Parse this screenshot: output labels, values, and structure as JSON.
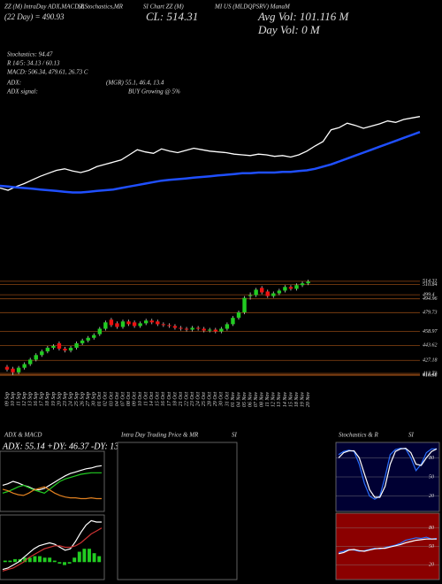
{
  "header": {
    "items": [
      "ZZ (M) IntraDay ADX,MACD,B",
      "SI,Stochastics,MR",
      "SI Chart ZZ (M)",
      "MI US (MLDQPSRV) ManaM"
    ],
    "ma_text": "(22 Day) = 490.93",
    "close_text": "CL: 514.31",
    "avg_vol": "Avg Vol: 101.116  M",
    "day_vol": "Day Vol: 0  M",
    "stats": [
      "Stochastics: 94.47",
      "R  14/5: 34.13 / 60.13",
      "MACD: 506.34, 479.61, 26.73 C"
    ],
    "adx_label": "ADX:",
    "adx_values": "(MGR) 55.1, 46.4, 13.4",
    "signal_label": "ADX  signal:",
    "signal_value": "BUY Growing @ 5%"
  },
  "chart_data": [
    {
      "type": "candlestick",
      "categories": [
        "09 Sep",
        "10 Sep",
        "11 Sep",
        "12 Sep",
        "13 Sep",
        "16 Sep",
        "17 Sep",
        "18 Sep",
        "19 Sep",
        "20 Sep",
        "23 Sep",
        "24 Sep",
        "25 Sep",
        "26 Sep",
        "27 Sep",
        "30 Sep",
        "01 Oct",
        "02 Oct",
        "03 Oct",
        "04 Oct",
        "07 Oct",
        "08 Oct",
        "09 Oct",
        "10 Oct",
        "11 Oct",
        "14 Oct",
        "15 Oct",
        "16 Oct",
        "17 Oct",
        "18 Oct",
        "21 Oct",
        "22 Oct",
        "23 Oct",
        "24 Oct",
        "25 Oct",
        "28 Oct",
        "29 Oct",
        "30 Oct",
        "31 Oct",
        "01 Nov",
        "04 Nov",
        "05 Nov",
        "06 Nov",
        "07 Nov",
        "08 Nov",
        "11 Nov",
        "12 Nov",
        "13 Nov",
        "14 Nov",
        "15 Nov",
        "18 Nov",
        "19 Nov",
        "20 Nov"
      ],
      "open": [
        420,
        418,
        414,
        419,
        423,
        428,
        433,
        437,
        441,
        446,
        440,
        438,
        441,
        446,
        449,
        452,
        456,
        462,
        472,
        468,
        464,
        470,
        469,
        465,
        468,
        471,
        470,
        467,
        466,
        465,
        463,
        462,
        461,
        463,
        462,
        460,
        461,
        459,
        462,
        467,
        474,
        480,
        498,
        499,
        507,
        503,
        498,
        501,
        504,
        508,
        506,
        510,
        512
      ],
      "high": [
        422,
        420,
        421,
        425,
        430,
        435,
        439,
        443,
        445,
        448,
        442,
        443,
        448,
        451,
        454,
        457,
        464,
        471,
        474,
        470,
        472,
        472,
        471,
        470,
        473,
        473,
        472,
        469,
        468,
        467,
        465,
        464,
        465,
        465,
        464,
        463,
        463,
        464,
        469,
        476,
        482,
        498,
        502,
        507,
        509,
        505,
        503,
        506,
        510,
        510,
        512,
        514,
        516
      ],
      "low": [
        415,
        411,
        412,
        417,
        421,
        426,
        431,
        435,
        439,
        438,
        436,
        436,
        439,
        444,
        447,
        450,
        454,
        460,
        464,
        462,
        462,
        465,
        463,
        463,
        466,
        467,
        465,
        464,
        463,
        461,
        460,
        459,
        459,
        460,
        458,
        458,
        457,
        457,
        460,
        465,
        472,
        478,
        494,
        497,
        500,
        496,
        496,
        499,
        502,
        504,
        504,
        508,
        510
      ],
      "close": [
        417,
        414,
        419,
        423,
        428,
        433,
        437,
        441,
        443,
        440,
        438,
        441,
        446,
        449,
        452,
        455,
        462,
        469,
        466,
        464,
        470,
        467,
        465,
        468,
        471,
        469,
        467,
        466,
        465,
        463,
        462,
        461,
        463,
        462,
        460,
        461,
        459,
        462,
        467,
        474,
        480,
        496,
        499,
        505,
        502,
        498,
        501,
        504,
        508,
        506,
        510,
        512,
        514
      ],
      "up_color": "#22cc22",
      "down_color": "#ee1111",
      "grid_color": "#8b4513",
      "ylim": [
        405,
        520
      ],
      "yticks": [
        514.31,
        510.84,
        499.4,
        494.96,
        479.73,
        458.97,
        443.62,
        427.18,
        412.73,
        411.41,
        410.58
      ]
    },
    {
      "type": "overlay",
      "price_color": "#ffffff",
      "ylim": [
        300,
        600
      ],
      "series": [
        {
          "color": "#1f4fff",
          "values": [
            420,
            419,
            418,
            417,
            416,
            415,
            414,
            413,
            412,
            411,
            411,
            412,
            413,
            414,
            415,
            417,
            419,
            421,
            423,
            425,
            427,
            428,
            429,
            430,
            431,
            432,
            433,
            434,
            435,
            436,
            437,
            437,
            438,
            438,
            438,
            439,
            439,
            440,
            441,
            443,
            446,
            449,
            453,
            457,
            461,
            465,
            469,
            473,
            477,
            481,
            485,
            489,
            493
          ]
        }
      ]
    },
    {
      "type": "line",
      "title": "ADX  & MACD",
      "subtitle": "ADX: 55.14  +DY: 46.37  -DY: 13.41",
      "ylim": [
        0,
        70
      ],
      "series": [
        {
          "color": "#ffffff",
          "values": [
            30,
            32,
            35,
            33,
            30,
            28,
            25,
            24,
            26,
            30,
            34,
            38,
            42,
            45,
            47,
            49,
            51,
            52,
            54,
            55
          ]
        },
        {
          "color": "#22cc22",
          "values": [
            20,
            22,
            25,
            28,
            30,
            27,
            24,
            22,
            20,
            25,
            30,
            35,
            38,
            40,
            42,
            44,
            45,
            46,
            46,
            46
          ]
        },
        {
          "color": "#e08020",
          "values": [
            25,
            23,
            20,
            18,
            17,
            20,
            24,
            26,
            28,
            24,
            20,
            17,
            15,
            14,
            14,
            13,
            13,
            14,
            13,
            13
          ]
        }
      ]
    },
    {
      "type": "macd",
      "ylim": [
        -10,
        30
      ],
      "series": [
        {
          "color": "#ffffff",
          "values": [
            -5,
            -4,
            -2,
            0,
            3,
            6,
            9,
            11,
            12,
            13,
            12,
            10,
            8,
            9,
            14,
            20,
            25,
            28,
            27,
            27
          ]
        },
        {
          "color": "#cc3333",
          "values": [
            -6,
            -5,
            -4,
            -2,
            0,
            3,
            5,
            7,
            9,
            10,
            11,
            11,
            10,
            10,
            11,
            13,
            16,
            19,
            21,
            23
          ]
        }
      ],
      "bars": {
        "color": "#22cc22",
        "values": [
          1,
          1,
          2,
          2,
          3,
          3,
          4,
          4,
          3,
          3,
          1,
          -1,
          -2,
          -1,
          3,
          7,
          9,
          9,
          6,
          4
        ]
      }
    },
    {
      "type": "line",
      "title": "Intra  Day Trading Price  & MR",
      "subtitle": "SI",
      "ylim": [
        0,
        100
      ],
      "series": []
    },
    {
      "type": "line",
      "title": "Stochastics & R",
      "subtitle": "SI",
      "background": "#000033",
      "ylim": [
        0,
        100
      ],
      "yticks": [
        20,
        50,
        80
      ],
      "series": [
        {
          "color": "#2a6fff",
          "values": [
            85,
            90,
            92,
            90,
            70,
            40,
            20,
            15,
            20,
            50,
            85,
            93,
            95,
            94,
            80,
            60,
            70,
            88,
            94,
            94
          ]
        },
        {
          "color": "#ffffff",
          "values": [
            80,
            88,
            91,
            91,
            80,
            55,
            30,
            18,
            18,
            35,
            70,
            90,
            94,
            95,
            88,
            70,
            68,
            80,
            90,
            94
          ]
        }
      ]
    },
    {
      "type": "line",
      "background": "#8b0000",
      "ylim": [
        0,
        100
      ],
      "yticks": [
        20,
        50,
        80
      ],
      "series": [
        {
          "color": "#2a6fff",
          "values": [
            40,
            42,
            45,
            44,
            42,
            43,
            45,
            47,
            46,
            48,
            50,
            52,
            55,
            60,
            62,
            64,
            63,
            65,
            62,
            63
          ]
        },
        {
          "color": "#ffffff",
          "values": [
            38,
            40,
            44,
            45,
            43,
            42,
            44,
            46,
            47,
            47,
            49,
            51,
            53,
            56,
            58,
            60,
            61,
            62,
            62,
            62
          ]
        }
      ]
    }
  ]
}
